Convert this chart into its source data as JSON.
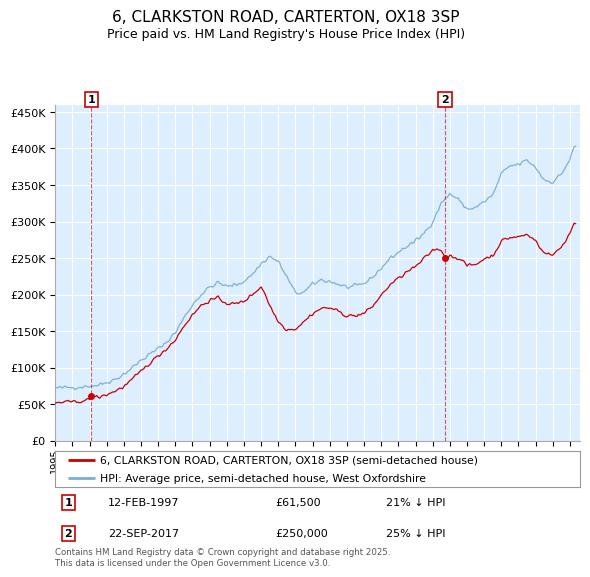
{
  "title": "6, CLARKSTON ROAD, CARTERTON, OX18 3SP",
  "subtitle": "Price paid vs. HM Land Registry's House Price Index (HPI)",
  "title_fontsize": 11,
  "subtitle_fontsize": 9,
  "background_color": "#ffffff",
  "plot_bg_color": "#ddeeff",
  "grid_color": "#ffffff",
  "ylim": [
    0,
    460000
  ],
  "yticks": [
    0,
    50000,
    100000,
    150000,
    200000,
    250000,
    300000,
    350000,
    400000,
    450000
  ],
  "ytick_labels": [
    "£0",
    "£50K",
    "£100K",
    "£150K",
    "£200K",
    "£250K",
    "£300K",
    "£350K",
    "£400K",
    "£450K"
  ],
  "xlim_start": 1995.0,
  "xlim_end": 2025.6,
  "ann1_x": 1997.11,
  "ann1_y": 61500,
  "ann2_x": 2017.72,
  "ann2_y": 250000,
  "sale1_date": "12-FEB-1997",
  "sale1_price": "£61,500",
  "sale1_hpi": "21% ↓ HPI",
  "sale2_date": "22-SEP-2017",
  "sale2_price": "£250,000",
  "sale2_hpi": "25% ↓ HPI",
  "legend_label1": "6, CLARKSTON ROAD, CARTERTON, OX18 3SP (semi-detached house)",
  "legend_label2": "HPI: Average price, semi-detached house, West Oxfordshire",
  "price_color": "#cc0000",
  "hpi_color": "#7aadd4",
  "footer_text": "Contains HM Land Registry data © Crown copyright and database right 2025.\nThis data is licensed under the Open Government Licence v3.0."
}
